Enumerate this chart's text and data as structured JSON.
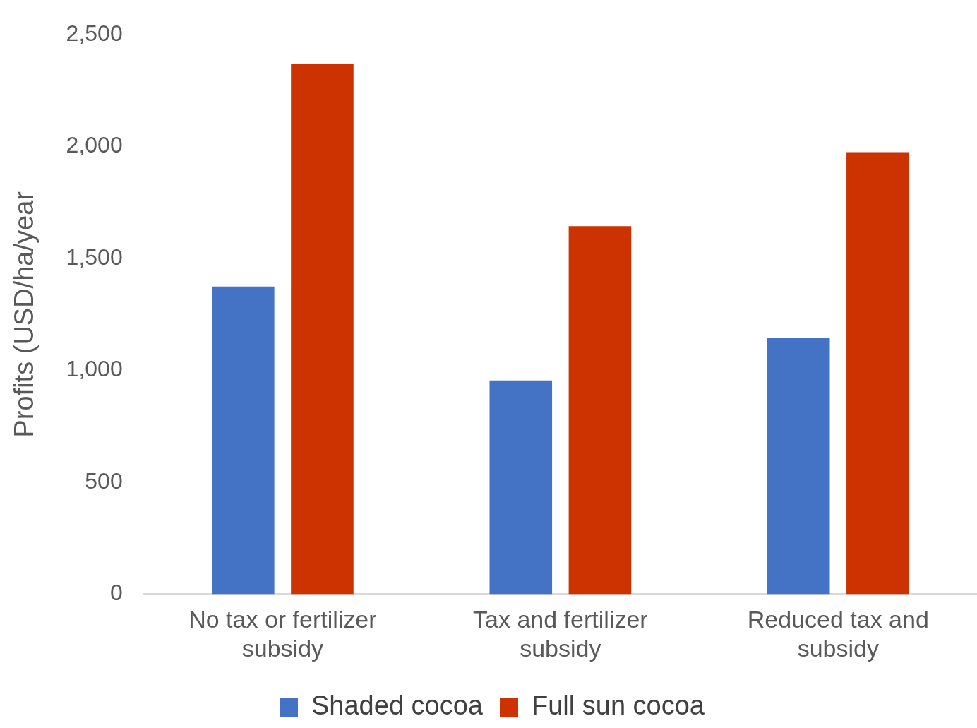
{
  "chart_data": {
    "type": "bar",
    "ylabel": "Profits (USD/ha/year",
    "categories": [
      "No tax or fertilizer subsidy",
      "Tax and fertilizer subsidy",
      "Reduced tax and subsidy"
    ],
    "series": [
      {
        "name": "Shaded cocoa",
        "color": "#4472c4",
        "values": [
          1375,
          955,
          1145
        ]
      },
      {
        "name": "Full sun cocoa",
        "color": "#cc3300",
        "values": [
          2370,
          1645,
          1975
        ]
      }
    ],
    "ylim": [
      0,
      2500
    ],
    "yticks": [
      {
        "value": 0,
        "label": "0"
      },
      {
        "value": 500,
        "label": "500"
      },
      {
        "value": 1000,
        "label": "1,000"
      },
      {
        "value": 1500,
        "label": "1,500"
      },
      {
        "value": 2000,
        "label": "2,000"
      },
      {
        "value": 2500,
        "label": "2,500"
      }
    ],
    "grid": false,
    "legend": "bottom"
  }
}
